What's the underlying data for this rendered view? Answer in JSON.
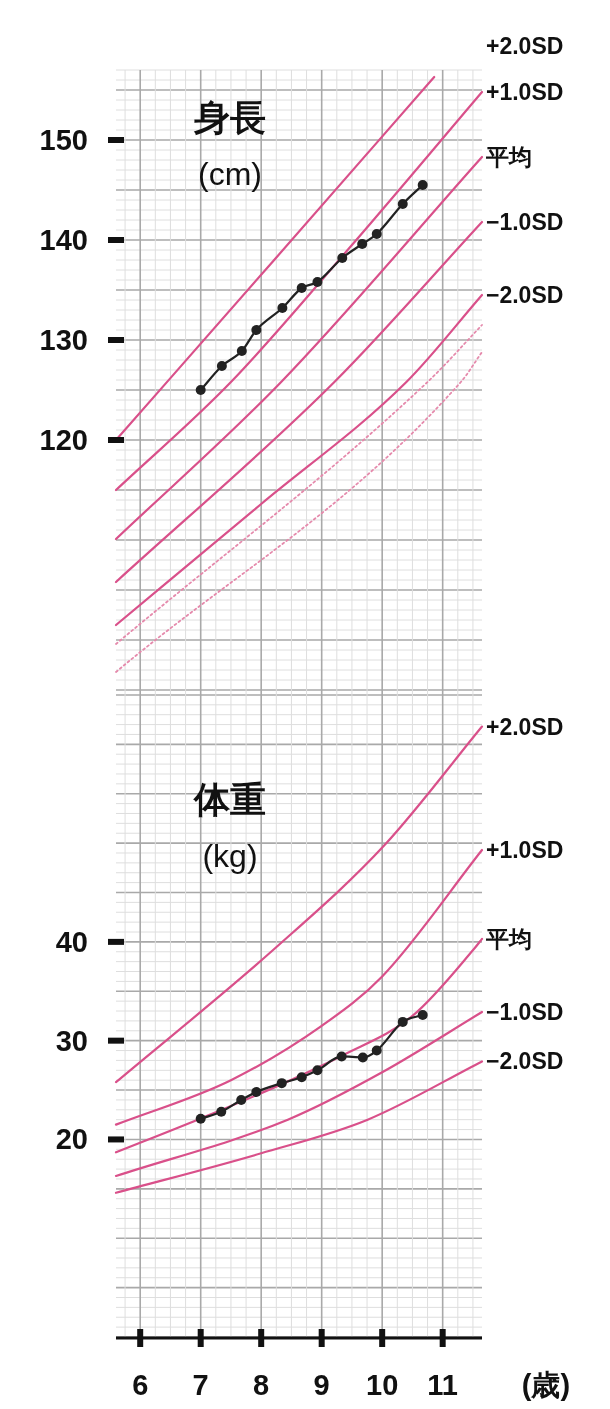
{
  "chart_data": [
    {
      "type": "line",
      "title": "身長",
      "subtitle": "(cm)",
      "xlim": [
        5.6,
        11.65
      ],
      "xticks": [
        6,
        7,
        8,
        9,
        10,
        11
      ],
      "ylim": [
        95,
        157
      ],
      "yticks": [
        120,
        130,
        140,
        150
      ],
      "grid": true,
      "tick_labels": "y",
      "series": [
        {
          "name": "+2.0SD",
          "color": "#d9508a",
          "x": [
            5.6,
            8.2,
            10.86
          ],
          "values": [
            120.0,
            137.9,
            156.3
          ]
        },
        {
          "name": "+1.0SD",
          "color": "#d9508a",
          "x": [
            5.6,
            7.5,
            9.5,
            11.65
          ],
          "values": [
            115.0,
            125.8,
            139.5,
            154.8
          ]
        },
        {
          "name": "平均",
          "color": "#d9508a",
          "x": [
            5.6,
            8.33,
            11.65
          ],
          "values": [
            110.1,
            125.8,
            148.3
          ]
        },
        {
          "name": "−1.0SD",
          "color": "#d9508a",
          "x": [
            5.6,
            9.21,
            11.65
          ],
          "values": [
            105.8,
            125.8,
            141.8
          ]
        },
        {
          "name": "−2.0SD",
          "color": "#d9508a",
          "x": [
            5.6,
            8.0,
            10.4,
            11.65
          ],
          "values": [
            101.5,
            113.6,
            125.8,
            134.5
          ]
        },
        {
          "color": "#e58aac",
          "line_style": "dotted",
          "x": [
            5.6,
            10.75,
            11.65
          ],
          "values": [
            99.6,
            125.8,
            131.5
          ]
        },
        {
          "color": "#e58aac",
          "line_style": "dotted",
          "x": [
            5.6,
            11.3,
            11.65
          ],
          "values": [
            96.8,
            125.8,
            128.8
          ]
        },
        {
          "color": "#222222",
          "marker": "circle",
          "x": [
            7.0,
            7.35,
            7.68,
            7.92,
            8.35,
            8.67,
            8.93,
            9.34,
            9.67,
            9.91,
            10.34,
            10.67
          ],
          "values": [
            125.0,
            127.4,
            128.9,
            131.0,
            133.2,
            135.2,
            135.8,
            138.2,
            139.6,
            140.6,
            143.6,
            145.5
          ]
        }
      ]
    },
    {
      "type": "line",
      "title": "体重",
      "subtitle": "(kg)",
      "xlabel": "(歳)",
      "xlim": [
        5.6,
        11.65
      ],
      "xticks": [
        6,
        7,
        8,
        9,
        10,
        11
      ],
      "ylim": [
        0,
        65.5
      ],
      "yticks": [
        20,
        30,
        40
      ],
      "grid": true,
      "series": [
        {
          "name": "+2.0SD",
          "color": "#d9508a",
          "x": [
            5.6,
            8.22,
            10.04,
            11.65
          ],
          "values": [
            25.8,
            39.3,
            49.8,
            61.8
          ]
        },
        {
          "name": "+1.0SD",
          "color": "#d9508a",
          "x": [
            5.6,
            7.5,
            9.0,
            10.0,
            11.65
          ],
          "values": [
            21.5,
            26.0,
            31.5,
            36.5,
            49.3
          ]
        },
        {
          "name": "平均",
          "color": "#d9508a",
          "x": [
            5.6,
            6.95,
            8.34,
            9.34,
            10.5,
            11.52,
            11.65
          ],
          "values": [
            18.7,
            22.0,
            25.6,
            28.5,
            32.5,
            39.3,
            40.3
          ]
        },
        {
          "name": "−1.0SD",
          "color": "#d9508a",
          "x": [
            5.6,
            8.44,
            10.0,
            11.65
          ],
          "values": [
            16.3,
            22.0,
            26.8,
            32.9
          ]
        },
        {
          "name": "−2.0SD",
          "color": "#d9508a",
          "x": [
            5.6,
            8.0,
            9.76,
            11.65
          ],
          "values": [
            14.6,
            18.6,
            22.0,
            27.9
          ]
        },
        {
          "color": "#222222",
          "marker": "circle",
          "x": [
            7.0,
            7.34,
            7.67,
            7.92,
            8.34,
            8.67,
            8.93,
            9.33,
            9.68,
            9.91,
            10.34,
            10.67
          ],
          "values": [
            22.1,
            22.8,
            24.0,
            24.8,
            25.7,
            26.3,
            27.0,
            28.4,
            28.3,
            29.0,
            31.9,
            32.6
          ]
        }
      ]
    }
  ]
}
